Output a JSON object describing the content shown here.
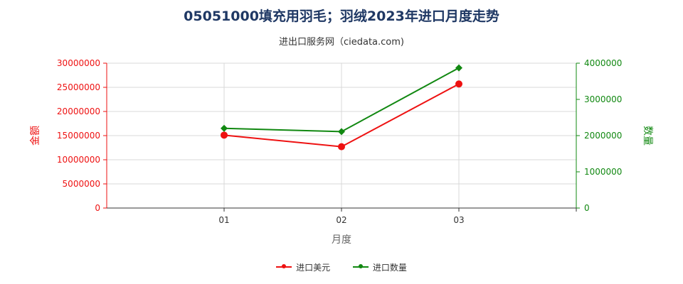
{
  "title": "05051000填充用羽毛；羽绒2023年进口月度走势",
  "subtitle": "进出口服务网（ciedata.com)",
  "chart_data": {
    "type": "line",
    "categories": [
      "01",
      "02",
      "03"
    ],
    "xlabel": "月度",
    "ylabel_left": "金额",
    "ylabel_right": "数量",
    "ylim_left": [
      0,
      30000000
    ],
    "ylim_right": [
      0,
      4000000
    ],
    "left_ticks": [
      "0",
      "5000000",
      "10000000",
      "15000000",
      "20000000",
      "25000000",
      "30000000"
    ],
    "right_ticks": [
      "0",
      "1000000",
      "2000000",
      "3000000",
      "4000000"
    ],
    "grid": true,
    "legend_position": "bottom",
    "series": [
      {
        "name": "进口美元",
        "axis": "left",
        "color": "#ee1111",
        "marker": "circle",
        "values": [
          15100000,
          12700000,
          25700000
        ]
      },
      {
        "name": "进口数量",
        "axis": "right",
        "color": "#118811",
        "marker": "diamond",
        "values": [
          2200000,
          2110000,
          3870000
        ]
      }
    ]
  }
}
